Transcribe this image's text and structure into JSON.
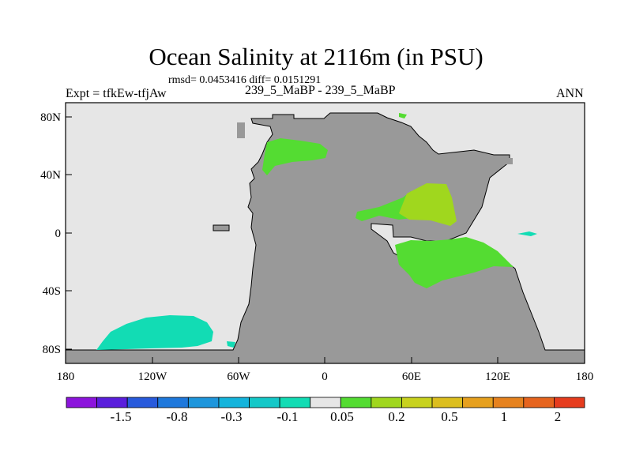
{
  "title": "Ocean Salinity at 2116m (in PSU)",
  "stats": "rmsd= 0.0453416 diff= 0.0151291",
  "left_label": "Expt = tfkEw-tfjAw",
  "center_label": "239_5_MaBP - 239_5_MaBP",
  "right_label": "ANN",
  "map": {
    "lon_range": [
      -180,
      180
    ],
    "lat_range": [
      -90,
      90
    ],
    "lon_ticks": [
      "180",
      "120W",
      "60W",
      "0",
      "60E",
      "120E",
      "180"
    ],
    "lat_ticks": [
      "80N",
      "40N",
      "0",
      "40S",
      "80S"
    ],
    "colors": {
      "ocean_missing": "#e6e6e6",
      "land": "#999999",
      "green": "#54dc32",
      "yellow_green": "#a0d71e",
      "teal": "#12dcb4",
      "coastline": "#000000"
    }
  },
  "colorbar": {
    "colors": [
      "#8c14dc",
      "#5a1edc",
      "#285adc",
      "#1e78dc",
      "#1e96dc",
      "#14b4dc",
      "#14c8c8",
      "#12dcb4",
      "#e6e6e6",
      "#54dc32",
      "#a0d71e",
      "#c8d21e",
      "#dcbe1e",
      "#e6a01e",
      "#e6821e",
      "#e6641e",
      "#e63c1e"
    ],
    "labels": [
      "-1.5",
      "-0.8",
      "-0.3",
      "-0.1",
      "0.05",
      "0.2",
      "0.5",
      "1",
      "2"
    ]
  }
}
